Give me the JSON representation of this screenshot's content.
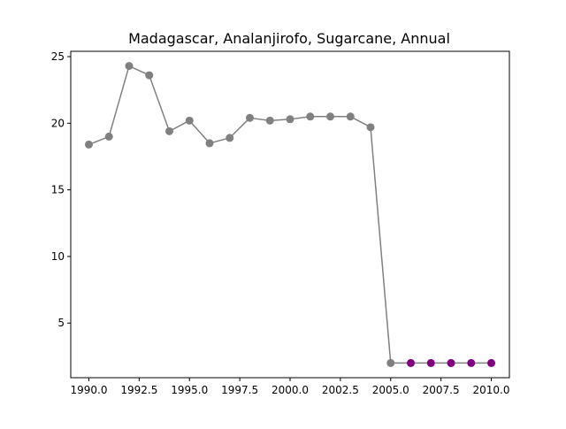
{
  "chart_data": {
    "type": "line",
    "title": "Madagascar, Analanjirofo, Sugarcane, Annual",
    "xlabel": "",
    "ylabel": "",
    "xlim": [
      1989.1,
      2010.9
    ],
    "ylim": [
      0.9,
      25.4
    ],
    "x_ticks": [
      1990.0,
      1992.5,
      1995.0,
      1997.5,
      2000.0,
      2002.5,
      2005.0,
      2007.5,
      2010.0
    ],
    "x_tick_labels": [
      "1990.0",
      "1992.5",
      "1995.0",
      "1997.5",
      "2000.0",
      "2002.5",
      "2005.0",
      "2007.5",
      "2010.0"
    ],
    "y_ticks": [
      5,
      10,
      15,
      20,
      25
    ],
    "y_tick_labels": [
      "5",
      "10",
      "15",
      "20",
      "25"
    ],
    "grid": false,
    "series": [
      {
        "x": [
          1990,
          1991,
          1992,
          1993,
          1994,
          1995,
          1996,
          1997,
          1998,
          1999,
          2000,
          2001,
          2002,
          2003,
          2004,
          2005,
          2006,
          2007,
          2008,
          2009,
          2010
        ],
        "y": [
          18.4,
          19.0,
          24.3,
          23.6,
          19.4,
          20.2,
          18.5,
          18.9,
          20.4,
          20.2,
          20.3,
          20.5,
          20.5,
          20.5,
          19.7,
          2.0,
          2.0,
          2.0,
          2.0,
          2.0,
          2.0
        ],
        "color": "#808080",
        "marker_colors": [
          "#808080",
          "#808080",
          "#808080",
          "#808080",
          "#808080",
          "#808080",
          "#808080",
          "#808080",
          "#808080",
          "#808080",
          "#808080",
          "#808080",
          "#808080",
          "#808080",
          "#808080",
          "#808080",
          "#800080",
          "#800080",
          "#800080",
          "#800080",
          "#800080"
        ]
      }
    ]
  }
}
